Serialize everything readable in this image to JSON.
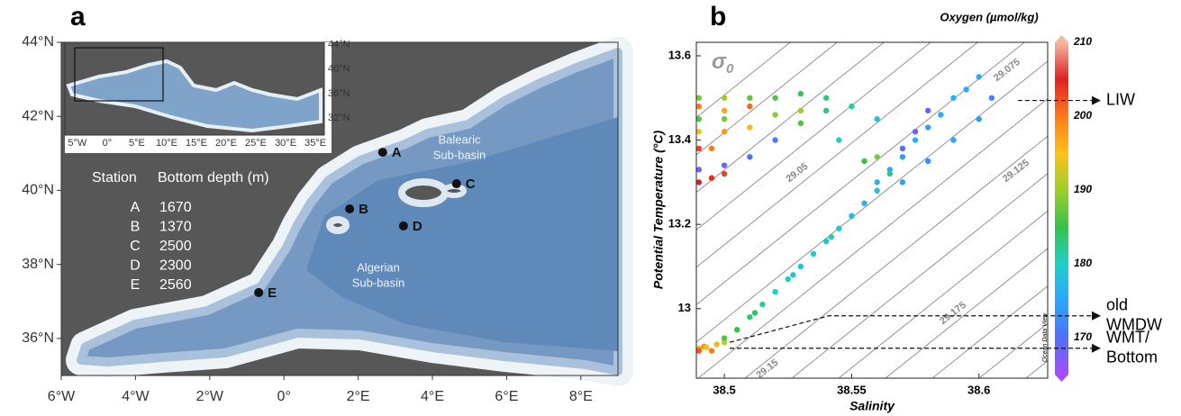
{
  "chart_data": [
    {
      "type": "map",
      "panel": "a",
      "xlim": [
        -6,
        9
      ],
      "ylim": [
        35,
        44
      ],
      "xticks": [
        {
          "value": -6,
          "label": "6°W"
        },
        {
          "value": -4,
          "label": "4°W"
        },
        {
          "value": -2,
          "label": "2°W"
        },
        {
          "value": 0,
          "label": "0°"
        },
        {
          "value": 2,
          "label": "2°E"
        },
        {
          "value": 4,
          "label": "4°E"
        },
        {
          "value": 6,
          "label": "6°E"
        },
        {
          "value": 8,
          "label": "8°E"
        }
      ],
      "yticks": [
        {
          "value": 36,
          "label": "36°N"
        },
        {
          "value": 38,
          "label": "38°N"
        },
        {
          "value": 40,
          "label": "40°N"
        },
        {
          "value": 42,
          "label": "42°N"
        },
        {
          "value": 44,
          "label": "44°N"
        }
      ],
      "stations": {
        "names": [
          "A",
          "B",
          "C",
          "D",
          "E"
        ],
        "lon": [
          2.66,
          1.77,
          4.65,
          3.22,
          -0.68
        ],
        "lat": [
          41.03,
          39.5,
          40.18,
          39.04,
          37.24
        ]
      },
      "station_table": {
        "headers": [
          "Station",
          "Bottom depth (m)"
        ],
        "rows": [
          [
            "A",
            1670
          ],
          [
            "B",
            1370
          ],
          [
            "C",
            2500
          ],
          [
            "D",
            2300
          ],
          [
            "E",
            2560
          ]
        ]
      },
      "region_labels": [
        [
          "Balearic",
          "Sub-basin"
        ],
        [
          "Algerian",
          "Sub-basin"
        ]
      ],
      "inset": {
        "xlim": [
          -7.1,
          36.5
        ],
        "ylim": [
          29.2,
          44.4
        ],
        "xticks": [
          {
            "value": -5,
            "label": "5°W"
          },
          {
            "value": 0,
            "label": "0°"
          },
          {
            "value": 5,
            "label": "5°E"
          },
          {
            "value": 10,
            "label": "10°E"
          },
          {
            "value": 15,
            "label": "15°E"
          },
          {
            "value": 20,
            "label": "20°E"
          },
          {
            "value": 25,
            "label": "25°E"
          },
          {
            "value": 30,
            "label": "30°E"
          },
          {
            "value": 35,
            "label": "35°E"
          }
        ],
        "yticks": [
          {
            "value": 32,
            "label": "32°N"
          },
          {
            "value": 36,
            "label": "36°N"
          },
          {
            "value": 40,
            "label": "40°N"
          },
          {
            "value": 44,
            "label": "44°N"
          }
        ]
      }
    },
    {
      "type": "scatter",
      "panel": "b",
      "x_label": "Salinity",
      "y_label": "Potential Temperature (°C)",
      "xlim": [
        38.489,
        38.627
      ],
      "ylim": [
        12.835,
        13.632
      ],
      "xticks": [
        38.5,
        38.55,
        38.6
      ],
      "yticks": [
        13,
        13.2,
        13.4,
        13.6
      ],
      "x": [
        38.49,
        38.492,
        38.495,
        38.497,
        38.5,
        38.49,
        38.493,
        38.505,
        38.51,
        38.515,
        38.52,
        38.525,
        38.53,
        38.535,
        38.54,
        38.545,
        38.55,
        38.555,
        38.5,
        38.512,
        38.527,
        38.542,
        38.56,
        38.565,
        38.57,
        38.575,
        38.58,
        38.585,
        38.59,
        38.595,
        38.6,
        38.57,
        38.58,
        38.59,
        38.6,
        38.605,
        38.56,
        38.565,
        38.57,
        38.575,
        38.58,
        38.56,
        38.49,
        38.5,
        38.51,
        38.52,
        38.53,
        38.49,
        38.5,
        38.51,
        38.49,
        38.5,
        38.52,
        38.54,
        38.49,
        38.5,
        38.51,
        38.53,
        38.49,
        38.495,
        38.49,
        38.5,
        38.51,
        38.52,
        38.49,
        38.495,
        38.5,
        38.55,
        38.56,
        38.545,
        38.555,
        38.53,
        38.54
      ],
      "y": [
        12.905,
        12.91,
        12.9,
        12.915,
        12.92,
        12.9,
        12.908,
        12.95,
        12.98,
        13.01,
        13.04,
        13.07,
        13.1,
        13.13,
        13.16,
        13.19,
        13.22,
        13.25,
        12.93,
        12.99,
        13.08,
        13.17,
        13.3,
        13.33,
        13.36,
        13.4,
        13.43,
        13.46,
        13.5,
        13.52,
        13.55,
        13.3,
        13.35,
        13.4,
        13.45,
        13.5,
        13.28,
        13.32,
        13.38,
        13.42,
        13.47,
        13.36,
        13.5,
        13.5,
        13.5,
        13.5,
        13.51,
        13.48,
        13.47,
        13.48,
        13.45,
        13.45,
        13.46,
        13.47,
        13.42,
        13.42,
        13.43,
        13.44,
        13.38,
        13.38,
        13.33,
        13.34,
        13.36,
        13.4,
        13.3,
        13.31,
        13.32,
        13.48,
        13.45,
        13.4,
        13.35,
        13.47,
        13.5
      ],
      "c": [
        197,
        199,
        200,
        196,
        192,
        202,
        194,
        185,
        183,
        182,
        180,
        181,
        179,
        180,
        178,
        179,
        177,
        176,
        186,
        184,
        178,
        181,
        176,
        175,
        174,
        176,
        174,
        175,
        177,
        175,
        176,
        175,
        173,
        175,
        174,
        172,
        178,
        183,
        170,
        168,
        168,
        188,
        188,
        190,
        187,
        186,
        184,
        200,
        197,
        201,
        186,
        188,
        189,
        183,
        194,
        198,
        196,
        186,
        203,
        200,
        168,
        169,
        170,
        171,
        205,
        204,
        203,
        181,
        179,
        180,
        185,
        190,
        183
      ],
      "colorbar": {
        "title": "Oxygen (µmol/kg)",
        "clim": [
          165,
          210
        ],
        "ticks": [
          170,
          180,
          190,
          200,
          210
        ],
        "colors": [
          "#a64dff",
          "#4f6fff",
          "#2aa7ff",
          "#1fd0c8",
          "#35c24a",
          "#9ccf2a",
          "#ffc21a",
          "#ff7a1a",
          "#e02020",
          "#f4b8a0"
        ]
      },
      "isopycnal_symbol": "σ",
      "isopycnal_subscript": "0",
      "isopycnal_labels": [
        29.05,
        29.075,
        29.125,
        29.15,
        29.175
      ],
      "water_masses": [
        {
          "lines": [
            "LIW"
          ],
          "temperature": 13.494
        },
        {
          "lines": [
            "old",
            "WMDW"
          ],
          "temperature": 12.983
        },
        {
          "lines": [
            "WMT/",
            "Bottom"
          ],
          "temperature": 12.906
        }
      ],
      "watermark": "Ocean Data View"
    }
  ]
}
